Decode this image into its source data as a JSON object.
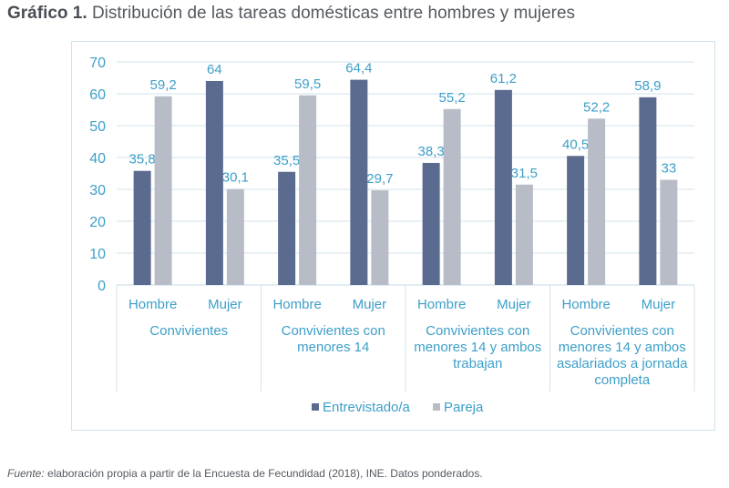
{
  "title": {
    "label": "Gráfico 1.",
    "text": "Distribución de las tareas domésticas entre hombres y mujeres"
  },
  "source": {
    "label": "Fuente:",
    "text": "elaboración propia a partir de la Encuesta de Fecundidad (2018), INE. Datos ponderados."
  },
  "colors": {
    "entrevistado": "#5b6b8f",
    "pareja": "#b8bcc6",
    "text": "#3d9fc9",
    "axis": "#cfe3ee"
  },
  "chart_data": {
    "type": "bar",
    "title": "Distribución de las tareas domésticas entre hombres y mujeres",
    "ylim": [
      0,
      70
    ],
    "yticks": [
      "0",
      "10",
      "20",
      "30",
      "40",
      "50",
      "60",
      "70"
    ],
    "groups": [
      {
        "label_lines": [
          "Convivientes"
        ],
        "categories": [
          "Hombre",
          "Mujer"
        ]
      },
      {
        "label_lines": [
          "Convivientes con",
          "menores 14"
        ],
        "categories": [
          "Hombre",
          "Mujer"
        ]
      },
      {
        "label_lines": [
          "Convivientes con",
          "menores 14 y ambos",
          "trabajan"
        ],
        "categories": [
          "Hombre",
          "Mujer"
        ]
      },
      {
        "label_lines": [
          "Convivientes con",
          "menores 14 y ambos",
          "asalariados a jornada",
          "completa"
        ],
        "categories": [
          "Hombre",
          "Mujer"
        ]
      }
    ],
    "series": [
      {
        "name": "Entrevistado/a",
        "values": [
          35.8,
          64,
          35.5,
          64.4,
          38.3,
          61.2,
          40.5,
          58.9
        ],
        "labels": [
          "35,8",
          "64",
          "35,5",
          "64,4",
          "38,3",
          "61,2",
          "40,5",
          "58,9"
        ]
      },
      {
        "name": "Pareja",
        "values": [
          59.2,
          30.1,
          59.5,
          29.7,
          55.2,
          31.5,
          52.2,
          33
        ],
        "labels": [
          "59,2",
          "30,1",
          "59,5",
          "29,7",
          "55,2",
          "31,5",
          "52,2",
          "33"
        ]
      }
    ],
    "legend_position": "bottom"
  }
}
